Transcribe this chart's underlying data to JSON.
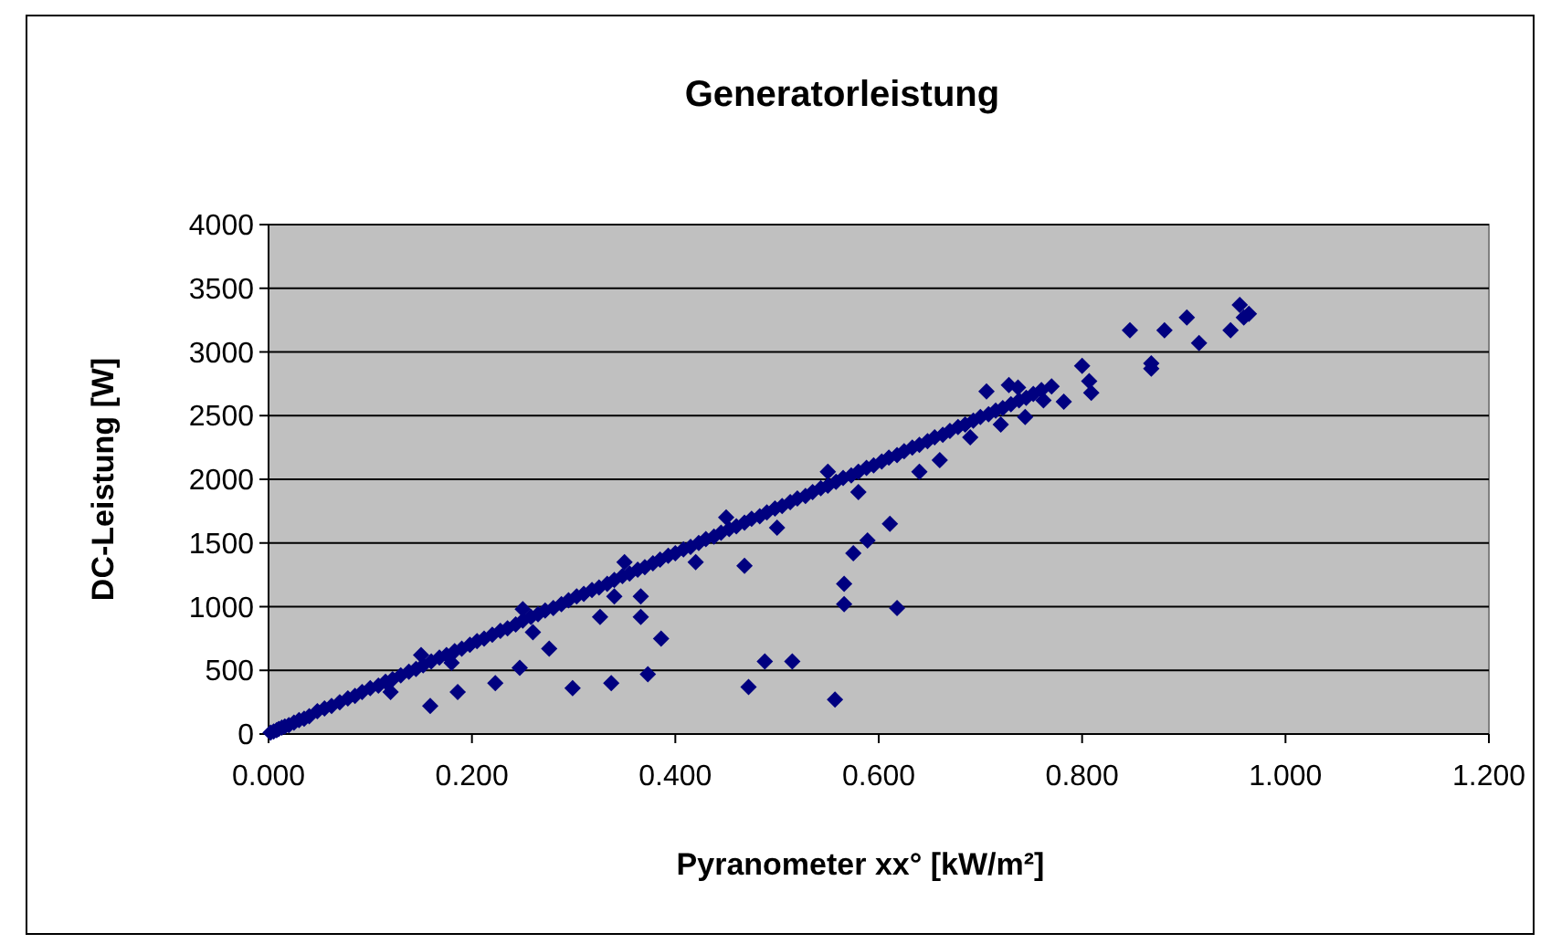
{
  "chart_data": {
    "type": "scatter",
    "title": "Generatorleistung",
    "xlabel": "Pyranometer xx° [kW/m²]",
    "ylabel": "DC-Leistung [W]",
    "xlim": [
      0,
      1.2
    ],
    "xticks": [
      {
        "value": 0,
        "label": "0.000"
      },
      {
        "value": 0.2,
        "label": "0.200"
      },
      {
        "value": 0.4,
        "label": "0.400"
      },
      {
        "value": 0.6,
        "label": "0.600"
      },
      {
        "value": 0.8,
        "label": "0.800"
      },
      {
        "value": 1,
        "label": "1.000"
      },
      {
        "value": 1.2,
        "label": "1.200"
      }
    ],
    "ylim": [
      0,
      4000
    ],
    "yticks": [
      0,
      500,
      1000,
      1500,
      2000,
      2500,
      3000,
      3500,
      4000
    ],
    "grid": "y",
    "marker": "diamond",
    "series": [
      {
        "color": "#000080",
        "x": [
          0.002,
          0.005,
          0.008,
          0.01,
          0.013,
          0.016,
          0.02,
          0.025,
          0.03,
          0.035,
          0.04,
          0.048,
          0.055,
          0.062,
          0.07,
          0.078,
          0.085,
          0.092,
          0.1,
          0.108,
          0.115,
          0.122,
          0.13,
          0.138,
          0.145,
          0.152,
          0.16,
          0.168,
          0.175,
          0.183,
          0.19,
          0.198,
          0.205,
          0.212,
          0.22,
          0.228,
          0.235,
          0.243,
          0.25,
          0.258,
          0.265,
          0.272,
          0.28,
          0.288,
          0.295,
          0.303,
          0.31,
          0.318,
          0.325,
          0.333,
          0.34,
          0.348,
          0.355,
          0.363,
          0.37,
          0.378,
          0.385,
          0.393,
          0.4,
          0.408,
          0.415,
          0.423,
          0.43,
          0.438,
          0.445,
          0.453,
          0.46,
          0.468,
          0.475,
          0.483,
          0.49,
          0.498,
          0.505,
          0.513,
          0.52,
          0.528,
          0.535,
          0.543,
          0.55,
          0.558,
          0.565,
          0.573,
          0.58,
          0.588,
          0.595,
          0.603,
          0.61,
          0.618,
          0.625,
          0.633,
          0.64,
          0.648,
          0.655,
          0.663,
          0.67,
          0.678,
          0.685,
          0.693,
          0.7,
          0.708,
          0.715,
          0.722,
          0.73,
          0.738,
          0.745,
          0.752,
          0.76,
          0.77,
          0.12,
          0.18,
          0.26,
          0.34,
          0.42,
          0.5,
          0.58,
          0.64,
          0.66,
          0.69,
          0.72,
          0.15,
          0.25,
          0.35,
          0.45,
          0.55,
          0.159,
          0.186,
          0.223,
          0.247,
          0.276,
          0.299,
          0.337,
          0.373,
          0.386,
          0.366,
          0.366,
          0.326,
          0.468,
          0.472,
          0.488,
          0.515,
          0.557,
          0.566,
          0.566,
          0.575,
          0.589,
          0.611,
          0.618,
          0.706,
          0.728,
          0.737,
          0.762,
          0.782,
          0.744,
          0.8,
          0.807,
          0.809,
          0.847,
          0.868,
          0.868,
          0.881,
          0.903,
          0.915,
          0.946,
          0.955,
          0.959,
          0.964
        ],
        "values": [
          10,
          20,
          30,
          40,
          50,
          60,
          70,
          90,
          110,
          120,
          140,
          180,
          200,
          220,
          250,
          280,
          300,
          330,
          360,
          380,
          410,
          430,
          460,
          490,
          510,
          540,
          570,
          600,
          620,
          650,
          670,
          700,
          730,
          750,
          780,
          810,
          830,
          860,
          890,
          920,
          940,
          970,
          990,
          1020,
          1050,
          1080,
          1100,
          1130,
          1150,
          1180,
          1210,
          1240,
          1260,
          1290,
          1310,
          1340,
          1370,
          1400,
          1420,
          1450,
          1470,
          1500,
          1530,
          1550,
          1580,
          1610,
          1630,
          1660,
          1690,
          1710,
          1740,
          1770,
          1790,
          1820,
          1850,
          1870,
          1900,
          1930,
          1950,
          1980,
          2010,
          2030,
          2060,
          2090,
          2110,
          2140,
          2170,
          2190,
          2220,
          2250,
          2270,
          2300,
          2330,
          2350,
          2380,
          2410,
          2430,
          2460,
          2490,
          2510,
          2540,
          2560,
          2590,
          2620,
          2640,
          2670,
          2700,
          2730,
          330,
          560,
          800,
          1080,
          1350,
          1620,
          1900,
          2060,
          2150,
          2330,
          2430,
          620,
          980,
          1350,
          1700,
          2060,
          220,
          330,
          400,
          520,
          670,
          360,
          400,
          470,
          750,
          1080,
          920,
          920,
          1320,
          370,
          570,
          570,
          270,
          1180,
          1020,
          1420,
          1520,
          1650,
          990,
          2690,
          2740,
          2720,
          2620,
          2610,
          2490,
          2890,
          2770,
          2680,
          3170,
          2910,
          2870,
          3170,
          3270,
          3070,
          3170,
          3370,
          3270,
          3300
        ]
      }
    ]
  }
}
